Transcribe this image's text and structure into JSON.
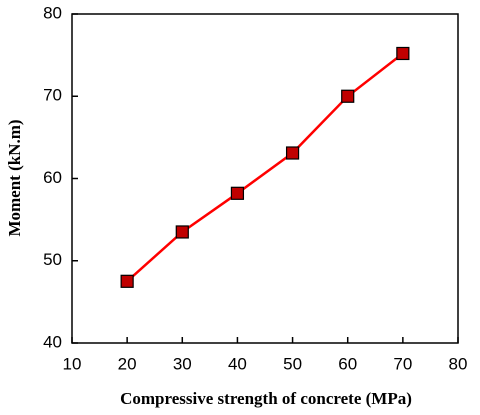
{
  "chart_data": {
    "type": "line",
    "x_label": "Compressive strength of concrete (MPa)",
    "y_label": "Moment (kN.m)",
    "x": [
      20,
      30,
      40,
      50,
      60,
      70
    ],
    "series": [
      {
        "color": "#ff0000",
        "marker_color": "#c00000",
        "values": [
          47.5,
          53.5,
          58.2,
          63.1,
          70.0,
          75.2
        ]
      }
    ],
    "xlim": [
      10,
      80
    ],
    "xticks": [
      10,
      20,
      30,
      40,
      50,
      60,
      70,
      80
    ],
    "ylim": [
      40,
      80
    ],
    "yticks": [
      40,
      50,
      60,
      70,
      80
    ],
    "grid": false
  }
}
